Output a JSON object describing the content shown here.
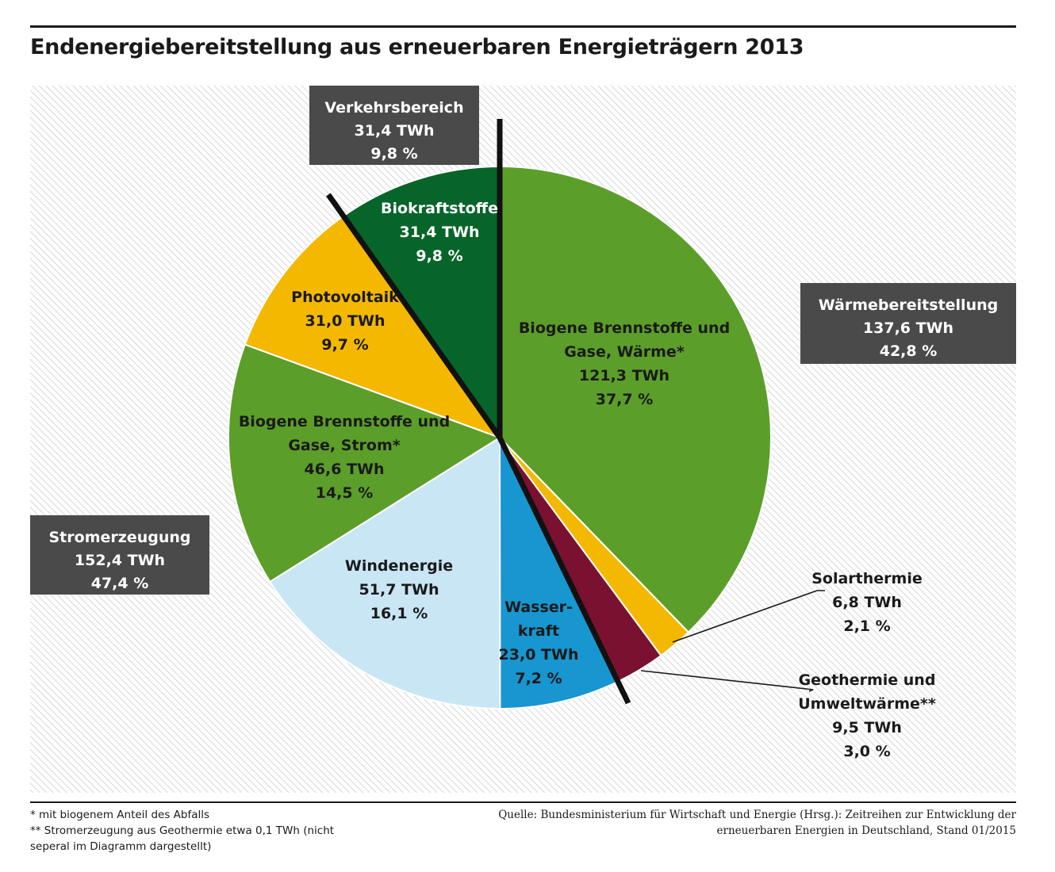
{
  "title": "Endenergiebereitstellung aus erneuerbaren Energieträgern 2013",
  "chart_data": {
    "type": "pie",
    "unit": "TWh",
    "slices": [
      {
        "name": "Biogene Brennstoffe und Gase, Wärme*",
        "label_lines": [
          "Biogene Brennstoffe und",
          "Gase, Wärme*"
        ],
        "value": 121.3,
        "value_text": "121,3 TWh",
        "percent": 37.7,
        "percent_text": "37,7 %",
        "color": "#5c9e2a",
        "text_color": "#1a1a1a"
      },
      {
        "name": "Solarthermie",
        "label_lines": [
          "Solarthermie"
        ],
        "value": 6.8,
        "value_text": "6,8 TWh",
        "percent": 2.1,
        "percent_text": "2,1 %",
        "color": "#f4b800",
        "text_color": "#1a1a1a"
      },
      {
        "name": "Geothermie und Umweltwärme**",
        "label_lines": [
          "Geothermie und",
          "Umweltwärme**"
        ],
        "value": 9.5,
        "value_text": "9,5 TWh",
        "percent": 3.0,
        "percent_text": "3,0 %",
        "color": "#7b1130",
        "text_color": "#1a1a1a"
      },
      {
        "name": "Wasserkraft",
        "label_lines": [
          "Wasser-",
          "kraft"
        ],
        "value": 23.0,
        "value_text": "23,0 TWh",
        "percent": 7.2,
        "percent_text": "7,2 %",
        "color": "#1796d0",
        "text_color": "#1a1a1a"
      },
      {
        "name": "Windenergie",
        "label_lines": [
          "Windenergie"
        ],
        "value": 51.7,
        "value_text": "51,7 TWh",
        "percent": 16.1,
        "percent_text": "16,1 %",
        "color": "#c9e6f5",
        "text_color": "#1a1a1a"
      },
      {
        "name": "Biogene Brennstoffe und Gase, Strom*",
        "label_lines": [
          "Biogene Brennstoffe und",
          "Gase, Strom*"
        ],
        "value": 46.6,
        "value_text": "46,6 TWh",
        "percent": 14.5,
        "percent_text": "14,5 %",
        "color": "#5c9e2a",
        "text_color": "#1a1a1a"
      },
      {
        "name": "Photovoltaik",
        "label_lines": [
          "Photovoltaik"
        ],
        "value": 31.0,
        "value_text": "31,0 TWh",
        "percent": 9.7,
        "percent_text": "9,7 %",
        "color": "#f4b800",
        "text_color": "#1a1a1a"
      },
      {
        "name": "Biokraftstoffe",
        "label_lines": [
          "Biokraftstoffe"
        ],
        "value": 31.4,
        "value_text": "31,4 TWh",
        "percent": 9.8,
        "percent_text": "9,8 %",
        "color": "#07652a",
        "text_color": "#ffffff"
      }
    ],
    "groups": [
      {
        "name": "Verkehrsbereich",
        "value_text": "31,4 TWh",
        "percent_text": "9,8 %"
      },
      {
        "name": "Wärmebereitstellung",
        "value_text": "137,6 TWh",
        "percent_text": "42,8 %"
      },
      {
        "name": "Stromerzeugung",
        "value_text": "152,4 TWh",
        "percent_text": "47,4 %"
      }
    ],
    "group_box_color": "#4a4a4a"
  },
  "footnotes": [
    "* mit biogenem Anteil des Abfalls",
    "** Stromerzeugung aus Geothermie etwa 0,1 TWh (nicht seperal im Diagramm dargestellt)"
  ],
  "source_lines": [
    "Quelle: Bundesministerium für Wirtschaft und Energie (Hrsg.): Zeitreihen zur Entwicklung der",
    "erneuerbaren Energien in Deutschland, Stand 01/2015"
  ]
}
